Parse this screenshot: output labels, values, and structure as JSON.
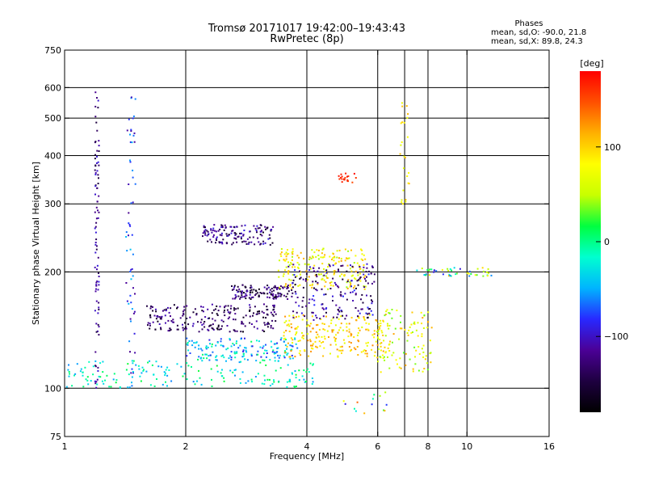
{
  "chart_data": {
    "type": "scatter",
    "title": "Tromsø 20171017 19:42:00–19:43:43",
    "subtitle": "RwPretec (8p)",
    "xlabel": "Frequency [MHz]",
    "ylabel": "Stationary phase Virtual Height [km]",
    "x_scale": "log",
    "y_scale": "log",
    "xlim": [
      1,
      16
    ],
    "ylim": [
      75,
      750
    ],
    "x_ticks": [
      1,
      2,
      4,
      6,
      8,
      10,
      16
    ],
    "x_tick_labels": [
      "1",
      "2",
      "4",
      "6",
      "8",
      "10",
      "16"
    ],
    "x_grid": [
      2,
      4,
      6,
      7,
      8,
      10
    ],
    "y_ticks": [
      75,
      100,
      200,
      300,
      400,
      500,
      600,
      750
    ],
    "y_tick_labels": [
      "75",
      "100",
      "200",
      "300",
      "400",
      "500",
      "600",
      "750"
    ],
    "y_grid": [
      100,
      200,
      300,
      400,
      500,
      600
    ],
    "grid": true,
    "annotation": {
      "heading": "Phases",
      "line1": "mean, sd,O: -90.0, 21.8",
      "line2": "mean, sd,X:  89.8, 24.3"
    },
    "colorbar": {
      "label": "[deg]",
      "range": [
        -180,
        180
      ],
      "ticks": [
        100,
        0,
        -100
      ],
      "tick_labels": [
        "100",
        "0",
        "−100"
      ],
      "colormap": [
        "#000000",
        "#1e0040",
        "#4b0096",
        "#2828ff",
        "#00b4ff",
        "#00ffd0",
        "#00ff40",
        "#c8ff00",
        "#ffff00",
        "#ffb000",
        "#ff5000",
        "#ff0000"
      ]
    },
    "clusters": [
      {
        "name": "vertical streak ~1.2 MHz",
        "f": [
          1.19,
          1.22
        ],
        "h": [
          100,
          590
        ],
        "phase": [
          -150,
          -90
        ],
        "n": 90
      },
      {
        "name": "vertical streak ~1.45 MHz",
        "f": [
          1.42,
          1.5
        ],
        "h": [
          100,
          570
        ],
        "phase": [
          -120,
          -40
        ],
        "n": 60
      },
      {
        "name": "E-layer trace",
        "f": [
          1.0,
          4.2
        ],
        "h": [
          100,
          118
        ],
        "phase": [
          -60,
          20
        ],
        "n": 180
      },
      {
        "name": "lower F trace",
        "f": [
          2.0,
          3.8
        ],
        "h": [
          118,
          135
        ],
        "phase": [
          -90,
          10
        ],
        "n": 160
      },
      {
        "name": "mid F band 1",
        "f": [
          1.6,
          3.4
        ],
        "h": [
          140,
          165
        ],
        "phase": [
          -170,
          -100
        ],
        "n": 220
      },
      {
        "name": "mid F band 2",
        "f": [
          2.6,
          3.6
        ],
        "h": [
          170,
          185
        ],
        "phase": [
          -170,
          -100
        ],
        "n": 120
      },
      {
        "name": "upper F band",
        "f": [
          2.2,
          3.3
        ],
        "h": [
          235,
          265
        ],
        "phase": [
          -160,
          -90
        ],
        "n": 140
      },
      {
        "name": "X trace high",
        "f": [
          3.4,
          5.6
        ],
        "h": [
          180,
          230
        ],
        "phase": [
          40,
          120
        ],
        "n": 200
      },
      {
        "name": "X trace low",
        "f": [
          3.5,
          6.2
        ],
        "h": [
          120,
          155
        ],
        "phase": [
          60,
          130
        ],
        "n": 220
      },
      {
        "name": "O trace 4-6 MHz",
        "f": [
          3.6,
          5.9
        ],
        "h": [
          150,
          210
        ],
        "phase": [
          -160,
          -80
        ],
        "n": 180
      },
      {
        "name": "high freq scatter",
        "f": [
          6.0,
          8.2
        ],
        "h": [
          110,
          160
        ],
        "phase": [
          30,
          120
        ],
        "n": 110
      },
      {
        "name": "200 km tail",
        "f": [
          7.5,
          11.5
        ],
        "h": [
          195,
          205
        ],
        "phase": [
          -110,
          110
        ],
        "n": 45
      },
      {
        "name": "orange patch ~5 MHz",
        "f": [
          4.8,
          5.3
        ],
        "h": [
          340,
          360
        ],
        "phase": [
          150,
          175
        ],
        "n": 20
      },
      {
        "name": "sparse top 7 MHz",
        "f": [
          6.8,
          7.2
        ],
        "h": [
          300,
          590
        ],
        "phase": [
          60,
          120
        ],
        "n": 25
      },
      {
        "name": "sparse bottom",
        "f": [
          4.8,
          7.4
        ],
        "h": [
          85,
          98
        ],
        "phase": [
          -100,
          160
        ],
        "n": 14
      }
    ]
  }
}
